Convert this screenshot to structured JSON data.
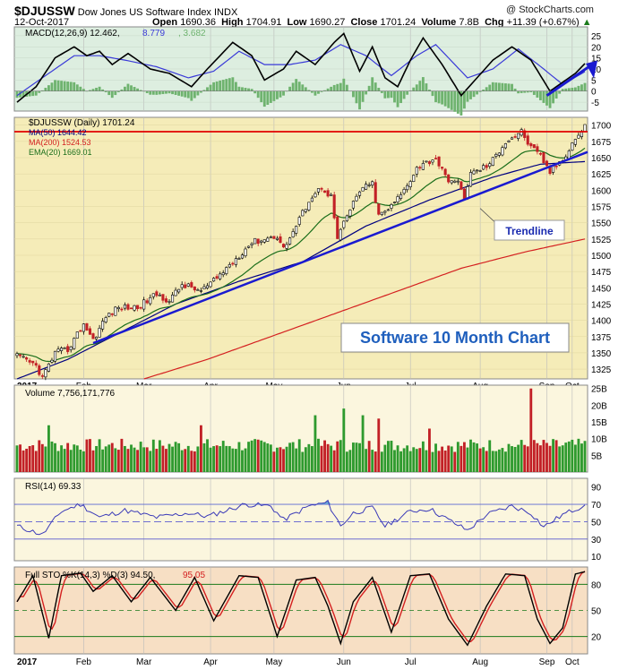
{
  "header": {
    "symbol": "$DJUSSW",
    "name": "Dow Jones US Software Index",
    "exchange": "INDX",
    "copyright": "@ StockCharts.com",
    "date": "12-Oct-2017",
    "open_label": "Open",
    "open": "1690.36",
    "high_label": "High",
    "high": "1704.91",
    "low_label": "Low",
    "low": "1690.27",
    "close_label": "Close",
    "close": "1701.24",
    "volume_label": "Volume",
    "volume": "7.8B",
    "chg_label": "Chg",
    "chg": "+11.39 (+0.67%)",
    "chg_arrow": "▲"
  },
  "colors": {
    "price_bg": "#f5ecb8",
    "ind_bg": "#fbf6de",
    "macd_bg": "#ddeee0",
    "sto_bg": "#f7dfc4",
    "up_bar": "#2e9a2e",
    "down_bar": "#c22026",
    "ma50": "#000080",
    "ma200": "#d42020",
    "ema20": "#1a6e1a",
    "resistance": "#e00000",
    "trendline": "#1a1ad0",
    "annotation_text": "#1f5fbd"
  },
  "legends": {
    "macd": {
      "label": "MACD(12,26,9)",
      "v1": "12.462",
      "v2": "8.779",
      "v3": "3.682"
    },
    "price": {
      "label": "$DJUSSW (Daily) 1701.24",
      "ma50": "MA(50) 1644.42",
      "ma200": "MA(200) 1524.53",
      "ema20": "EMA(20) 1669.01"
    },
    "volume": {
      "label": "Volume 7,756,171,776"
    },
    "rsi": {
      "label": "RSI(14) 69.33"
    },
    "sto": {
      "label": "Full STO %K(14,3) %D(3)",
      "k": "94.50",
      "d": "95.05"
    }
  },
  "annotations": {
    "trendline_label": "Trendline",
    "title_box": "Software 10 Month Chart"
  },
  "chart_data": {
    "type": "stock",
    "months": [
      "2017",
      "Feb",
      "Mar",
      "Apr",
      "May",
      "Jun",
      "Jul",
      "Aug",
      "Sep",
      "Oct"
    ],
    "price_axis": {
      "ticks": [
        1325,
        1350,
        1375,
        1400,
        1425,
        1450,
        1475,
        1500,
        1525,
        1550,
        1575,
        1600,
        1625,
        1650,
        1675,
        1700
      ],
      "range": [
        1310,
        1712
      ]
    },
    "close_anchors": [
      [
        0,
        1345
      ],
      [
        6,
        1330
      ],
      [
        8,
        1312
      ],
      [
        12,
        1350
      ],
      [
        16,
        1355
      ],
      [
        21,
        1395
      ],
      [
        24,
        1370
      ],
      [
        28,
        1405
      ],
      [
        32,
        1420
      ],
      [
        38,
        1420
      ],
      [
        44,
        1440
      ],
      [
        48,
        1430
      ],
      [
        52,
        1455
      ],
      [
        58,
        1445
      ],
      [
        62,
        1460
      ],
      [
        70,
        1500
      ],
      [
        74,
        1520
      ],
      [
        78,
        1525
      ],
      [
        82,
        1530
      ],
      [
        84,
        1510
      ],
      [
        88,
        1545
      ],
      [
        92,
        1585
      ],
      [
        96,
        1605
      ],
      [
        99,
        1590
      ],
      [
        101,
        1525
      ],
      [
        104,
        1560
      ],
      [
        108,
        1600
      ],
      [
        112,
        1610
      ],
      [
        114,
        1560
      ],
      [
        118,
        1575
      ],
      [
        122,
        1600
      ],
      [
        126,
        1635
      ],
      [
        132,
        1650
      ],
      [
        135,
        1620
      ],
      [
        139,
        1610
      ],
      [
        141,
        1590
      ],
      [
        143,
        1625
      ],
      [
        149,
        1640
      ],
      [
        154,
        1675
      ],
      [
        159,
        1690
      ],
      [
        162,
        1665
      ],
      [
        165,
        1652
      ],
      [
        168,
        1628
      ],
      [
        172,
        1648
      ],
      [
        176,
        1680
      ],
      [
        178,
        1690
      ],
      [
        179,
        1701
      ]
    ],
    "resistance": 1690,
    "trendline": {
      "from": [
        24,
        1365
      ],
      "to": [
        179,
        1655
      ]
    },
    "ma50_anchors": [
      [
        0,
        1310
      ],
      [
        16,
        1340
      ],
      [
        30,
        1375
      ],
      [
        50,
        1425
      ],
      [
        70,
        1460
      ],
      [
        90,
        1490
      ],
      [
        110,
        1545
      ],
      [
        130,
        1585
      ],
      [
        150,
        1620
      ],
      [
        165,
        1640
      ],
      [
        179,
        1644
      ]
    ],
    "ma200_anchors": [
      [
        40,
        1310
      ],
      [
        60,
        1340
      ],
      [
        80,
        1375
      ],
      [
        100,
        1410
      ],
      [
        120,
        1445
      ],
      [
        140,
        1480
      ],
      [
        160,
        1505
      ],
      [
        179,
        1525
      ]
    ],
    "macd_axis": {
      "ticks": [
        -5,
        0,
        5,
        10,
        15,
        20,
        25
      ],
      "range": [
        -9,
        29
      ]
    },
    "macd_anchors": [
      [
        0,
        -5
      ],
      [
        6,
        2
      ],
      [
        12,
        15
      ],
      [
        18,
        20
      ],
      [
        22,
        16
      ],
      [
        26,
        18
      ],
      [
        30,
        12
      ],
      [
        35,
        17
      ],
      [
        42,
        10
      ],
      [
        48,
        8
      ],
      [
        55,
        2
      ],
      [
        60,
        10
      ],
      [
        68,
        22
      ],
      [
        74,
        16
      ],
      [
        78,
        5
      ],
      [
        84,
        10
      ],
      [
        88,
        18
      ],
      [
        94,
        12
      ],
      [
        100,
        22
      ],
      [
        103,
        26
      ],
      [
        108,
        9
      ],
      [
        112,
        20
      ],
      [
        116,
        6
      ],
      [
        120,
        2
      ],
      [
        124,
        14
      ],
      [
        128,
        24
      ],
      [
        134,
        12
      ],
      [
        140,
        -2
      ],
      [
        145,
        6
      ],
      [
        150,
        14
      ],
      [
        156,
        20
      ],
      [
        162,
        14
      ],
      [
        168,
        0
      ],
      [
        172,
        4
      ],
      [
        176,
        8
      ],
      [
        179,
        12.462
      ]
    ],
    "macd_signal_anchors": [
      [
        0,
        -2
      ],
      [
        10,
        8
      ],
      [
        18,
        16
      ],
      [
        26,
        16
      ],
      [
        34,
        14
      ],
      [
        44,
        11
      ],
      [
        54,
        6
      ],
      [
        62,
        9
      ],
      [
        70,
        18
      ],
      [
        78,
        12
      ],
      [
        86,
        12
      ],
      [
        94,
        14
      ],
      [
        102,
        21
      ],
      [
        110,
        16
      ],
      [
        118,
        7
      ],
      [
        126,
        16
      ],
      [
        132,
        21
      ],
      [
        142,
        6
      ],
      [
        150,
        10
      ],
      [
        158,
        19
      ],
      [
        166,
        10
      ],
      [
        172,
        3
      ],
      [
        179,
        8.779
      ]
    ],
    "volume_axis": {
      "ticks": [
        "5B",
        "10B",
        "15B",
        "20B",
        "25B"
      ],
      "range": [
        0,
        26
      ]
    },
    "volume_spikes": [
      [
        10,
        14
      ],
      [
        58,
        14
      ],
      [
        94,
        17
      ],
      [
        103,
        19
      ],
      [
        109,
        17
      ],
      [
        114,
        16
      ],
      [
        130,
        13
      ],
      [
        162,
        25
      ]
    ],
    "rsi_axis": {
      "ticks": [
        10,
        30,
        50,
        70,
        90
      ],
      "range": [
        5,
        100
      ]
    },
    "rsi_anchors": [
      [
        0,
        45
      ],
      [
        8,
        35
      ],
      [
        14,
        62
      ],
      [
        20,
        70
      ],
      [
        26,
        55
      ],
      [
        34,
        63
      ],
      [
        44,
        55
      ],
      [
        54,
        60
      ],
      [
        60,
        56
      ],
      [
        72,
        70
      ],
      [
        80,
        68
      ],
      [
        84,
        52
      ],
      [
        92,
        68
      ],
      [
        98,
        72
      ],
      [
        102,
        45
      ],
      [
        106,
        60
      ],
      [
        112,
        66
      ],
      [
        116,
        45
      ],
      [
        124,
        62
      ],
      [
        130,
        65
      ],
      [
        136,
        52
      ],
      [
        142,
        40
      ],
      [
        148,
        58
      ],
      [
        156,
        68
      ],
      [
        162,
        60
      ],
      [
        166,
        44
      ],
      [
        172,
        58
      ],
      [
        179,
        69.33
      ]
    ],
    "sto_axis": {
      "ticks": [
        20,
        50,
        80
      ],
      "range": [
        0,
        100
      ]
    },
    "sto_k_anchors": [
      [
        0,
        60
      ],
      [
        5,
        90
      ],
      [
        10,
        18
      ],
      [
        14,
        90
      ],
      [
        20,
        93
      ],
      [
        24,
        72
      ],
      [
        30,
        90
      ],
      [
        36,
        60
      ],
      [
        42,
        88
      ],
      [
        50,
        50
      ],
      [
        56,
        88
      ],
      [
        62,
        38
      ],
      [
        70,
        90
      ],
      [
        76,
        88
      ],
      [
        82,
        20
      ],
      [
        88,
        85
      ],
      [
        94,
        88
      ],
      [
        98,
        55
      ],
      [
        102,
        12
      ],
      [
        106,
        60
      ],
      [
        112,
        88
      ],
      [
        118,
        25
      ],
      [
        124,
        90
      ],
      [
        130,
        92
      ],
      [
        136,
        40
      ],
      [
        142,
        10
      ],
      [
        148,
        55
      ],
      [
        154,
        92
      ],
      [
        160,
        90
      ],
      [
        164,
        40
      ],
      [
        168,
        12
      ],
      [
        172,
        30
      ],
      [
        176,
        92
      ],
      [
        179,
        94.5
      ]
    ]
  }
}
